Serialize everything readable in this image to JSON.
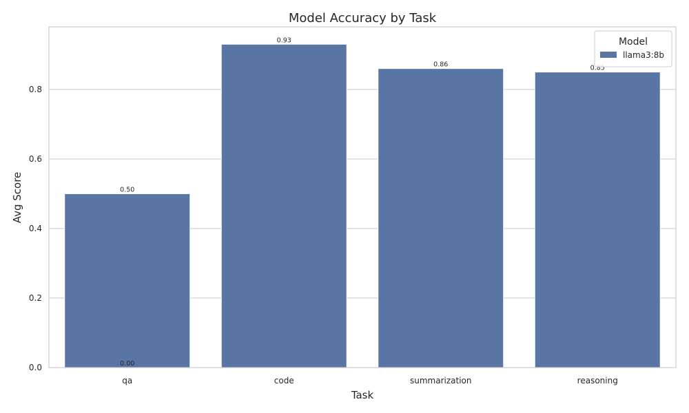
{
  "chart_data": {
    "type": "bar",
    "title": "Model Accuracy by Task",
    "xlabel": "Task",
    "ylabel": "Avg Score",
    "categories": [
      "qa",
      "code",
      "summarization",
      "reasoning"
    ],
    "series": [
      {
        "name": "llama3:8b",
        "values": [
          0.5,
          0.93,
          0.86,
          0.85
        ],
        "labels": [
          "0.50",
          "0.93",
          "0.86",
          "0.85"
        ],
        "color": "#5975a4"
      }
    ],
    "extra_labels": [
      {
        "category": "qa",
        "value": 0.0,
        "text": "0.00"
      }
    ],
    "ylim": [
      0,
      0.98
    ],
    "yticks": [
      0.0,
      0.2,
      0.4,
      0.6,
      0.8
    ],
    "ytick_labels": [
      "0.0",
      "0.2",
      "0.4",
      "0.6",
      "0.8"
    ],
    "grid": true,
    "legend": {
      "title": "Model",
      "placement": "top-right"
    },
    "colors": {
      "grid": "#cccccc",
      "axis_frame": "#cccccc",
      "text": "#262626"
    }
  }
}
